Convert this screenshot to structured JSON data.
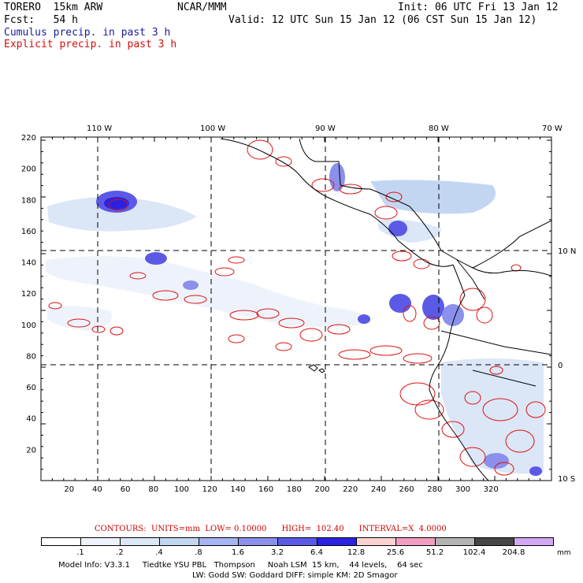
{
  "header": {
    "model": "TORERO  15km ARW",
    "org": "NCAR/MMM",
    "init": "Init: 06 UTC Fri 13 Jan 12",
    "fcst": "Fcst:   54 h",
    "valid": "Valid: 12 UTC Sun 15 Jan 12 (06 CST Sun 15 Jan 12)",
    "cumulus": "Cumulus precip. in past 3 h",
    "explicit": "Explicit precip. in past 3 h"
  },
  "map": {
    "lon_labels": [
      "110 W",
      "100 W",
      "90 W",
      "80 W",
      "70 W"
    ],
    "lat_labels": [
      "10 N",
      "0",
      "10 S"
    ],
    "x_ticks": [
      "20",
      "40",
      "60",
      "80",
      "100",
      "120",
      "140",
      "160",
      "180",
      "200",
      "220",
      "240",
      "260",
      "280",
      "300",
      "320"
    ],
    "y_ticks": [
      "20",
      "40",
      "60",
      "80",
      "100",
      "120",
      "140",
      "160",
      "180",
      "200",
      "220"
    ],
    "colors": {
      "coast": "#000000",
      "contour": "#e01010",
      "grid": "#000000"
    }
  },
  "contours_info": "CONTOURS:  UNITS=mm  LOW= 0.10000      HIGH=  102.40      INTERVAL=X  4.0000",
  "legend": {
    "labels": [
      ".1",
      ".2",
      ".4",
      ".8",
      "1.6",
      "3.2",
      "6.4",
      "12.8",
      "25.6",
      "51.2",
      "102.4",
      "204.8"
    ],
    "unit": "mm",
    "colors": [
      "#ffffff",
      "#eef3fb",
      "#dbe6f7",
      "#c2d6f2",
      "#a6b4f2",
      "#8a90ec",
      "#5a5ae6",
      "#2a22e0",
      "#fad2d2",
      "#f29ec2",
      "#b4b4b4",
      "#464646",
      "#d2a8f2"
    ]
  },
  "footer": {
    "line1": "Model Info: V3.3.1     Tiedtke YSU PBL   Thompson     Noah LSM  15 km,    44 levels,    64 sec",
    "line2": "LW: Godd SW: Goddard DIFF: simple KM: 2D Smagor"
  }
}
